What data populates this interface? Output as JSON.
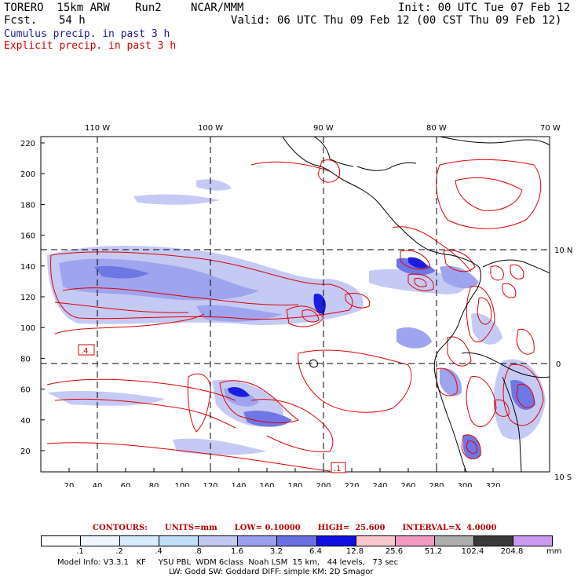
{
  "header": {
    "model": "TORERO  15km ARW",
    "run": "Run2",
    "org": "NCAR/MMM",
    "init": "Init: 00 UTC Tue 07 Feb 12",
    "fcst_label": "Fcst.",
    "fcst_value": "54 h",
    "valid": "Valid: 06 UTC Thu 09 Feb 12 (00 CST Thu 09 Feb 12)"
  },
  "legend_titles": {
    "cumulus": "Cumulus precip. in past 3 h",
    "explicit": "Explicit precip. in past 3 h"
  },
  "colors": {
    "cumulus_title": "#1a1a9a",
    "explicit_title": "#d00000",
    "contour": "#e00000",
    "coast": "#000000"
  },
  "axes": {
    "top_labels": [
      "110 W",
      "100 W",
      "90 W",
      "80 W",
      "70 W"
    ],
    "right_labels": [
      "10 N",
      "0",
      "10 S"
    ],
    "left_labels": [
      "220",
      "200",
      "180",
      "160",
      "140",
      "120",
      "100",
      "80",
      "60",
      "40",
      "20"
    ],
    "bottom_labels": [
      "20",
      "40",
      "60",
      "80",
      "100",
      "120",
      "140",
      "160",
      "180",
      "200",
      "220",
      "240",
      "260",
      "280",
      "300",
      "320"
    ],
    "contour_labels": [
      ".4",
      ".1"
    ]
  },
  "contours": {
    "title": "CONTOURS:",
    "units": "UNITS=mm",
    "low": "LOW= 0.10000",
    "high": "HIGH=  25.600",
    "interval": "INTERVAL=X  4.0000"
  },
  "colorbar": {
    "bins": [
      {
        "label": ".1",
        "color": "#ffffff"
      },
      {
        "label": ".2",
        "color": "#eef6ff"
      },
      {
        "label": ".4",
        "color": "#d8ecff"
      },
      {
        "label": ".8",
        "color": "#c0e0f8"
      },
      {
        "label": "1.6",
        "color": "#c2c8f4"
      },
      {
        "label": "3.2",
        "color": "#9aa0ee"
      },
      {
        "label": "6.4",
        "color": "#6870e4"
      },
      {
        "label": "12.8",
        "color": "#1010e0"
      },
      {
        "label": "25.6",
        "color": "#f8c8cc"
      },
      {
        "label": "51.2",
        "color": "#f29ac4"
      },
      {
        "label": "102.4",
        "color": "#aeaeae"
      },
      {
        "label": "204.8",
        "color": "#3a3a3a"
      },
      {
        "label": "",
        "color": "#cc99f0"
      }
    ],
    "unit": "mm"
  },
  "model_info": {
    "line1": "Model Info: V3.3.1   KF     YSU PBL  WDM 6class  Noah LSM  15 km,   44 levels,   73 sec",
    "line2": "LW: Godd SW: Goddard DIFF: simple KM: 2D Smagor"
  }
}
